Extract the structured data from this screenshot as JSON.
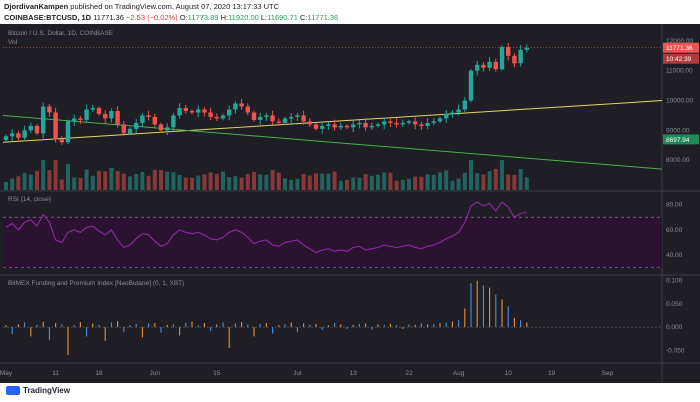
{
  "header": {
    "author": "DjordivanKampen",
    "published_text": "published on TradingView.com, August 07, 2020 13:17:33 UTC",
    "symbol": "COINBASE:BTCUSD, 1D",
    "last": "11771.36",
    "change": "−2.53 (−0.02%)",
    "o_label": "O:",
    "o_value": "11773.89",
    "h_label": "H:",
    "h_value": "11920.00",
    "l_label": "L:",
    "l_value": "11690.71",
    "c_label": "C:",
    "c_value": "11771.36"
  },
  "footer": {
    "brand": "TradingView"
  },
  "colors": {
    "background": "#1e1e24",
    "up": "#26a69a",
    "down": "#ef5350",
    "rsi_line": "#9c27b0",
    "rsi_fill": "#2a1230",
    "funding_blue": "#4a90e2",
    "funding_orange": "#e8913a",
    "yellow_line": "#e6d36a",
    "green_line": "#4caf50"
  },
  "chart_data": [
    {
      "type": "candlestick",
      "title": "Bitcoin / U.S. Dollar, 1D, COINBASE",
      "subtitle": "Vol",
      "x_tick_labels": [
        "May",
        "11",
        "18",
        "Jun",
        "15",
        "Jul",
        "13",
        "22",
        "Aug",
        "10",
        "19",
        "Sep"
      ],
      "y_tick_labels": [
        "12000.00",
        "11000.00",
        "10000.00",
        "9000.00",
        "8000.00"
      ],
      "ylim": [
        7000,
        12500
      ],
      "last_price_label": "11771.36",
      "countdown_label": "10:42:39",
      "support_label": "8697.94",
      "closes": [
        8800,
        8900,
        8750,
        9000,
        9150,
        8900,
        9800,
        9600,
        8700,
        8600,
        9300,
        9400,
        9350,
        9700,
        9750,
        9550,
        9400,
        9650,
        9200,
        8900,
        9050,
        9250,
        9500,
        9450,
        9200,
        9000,
        9100,
        9500,
        9750,
        9650,
        9600,
        9700,
        9600,
        9450,
        9400,
        9500,
        9700,
        9900,
        9800,
        9600,
        9350,
        9450,
        9500,
        9300,
        9250,
        9400,
        9450,
        9500,
        9300,
        9200,
        9050,
        9150,
        9200,
        9100,
        9150,
        9100,
        9200,
        9250,
        9100,
        9150,
        9200,
        9300,
        9250,
        9200,
        9250,
        9300,
        9200,
        9150,
        9250,
        9300,
        9400,
        9550,
        9600,
        9700,
        10000,
        11000,
        11200,
        11100,
        11300,
        11050,
        11800,
        11500,
        11250,
        11700,
        11771.36
      ]
    },
    {
      "type": "line",
      "title": "RSI (14, close)",
      "y_tick_labels": [
        "80.00",
        "60.00",
        "40.00"
      ],
      "ylim": [
        25,
        90
      ],
      "values": [
        62,
        65,
        60,
        66,
        68,
        63,
        72,
        66,
        52,
        50,
        58,
        60,
        58,
        62,
        63,
        59,
        56,
        60,
        52,
        46,
        48,
        53,
        57,
        56,
        51,
        47,
        49,
        56,
        60,
        58,
        57,
        58,
        56,
        53,
        52,
        54,
        58,
        60,
        58,
        54,
        49,
        51,
        52,
        48,
        47,
        50,
        51,
        52,
        48,
        45,
        42,
        44,
        45,
        43,
        44,
        43,
        46,
        47,
        44,
        45,
        46,
        48,
        47,
        46,
        47,
        48,
        46,
        45,
        47,
        48,
        50,
        53,
        55,
        58,
        66,
        79,
        82,
        79,
        81,
        75,
        82,
        78,
        70,
        73,
        74
      ]
    },
    {
      "type": "bar",
      "title": "BitMEX Funding and Premium Index [NeoButane] (0, 1, XBT)",
      "y_tick_labels": [
        "0.100",
        "0.050",
        "0.000",
        "-0.050"
      ],
      "ylim": [
        -0.075,
        0.11
      ],
      "values": [
        0.004,
        -0.015,
        0.006,
        0.01,
        -0.02,
        0.005,
        0.012,
        -0.028,
        0.009,
        0.006,
        -0.06,
        0.004,
        0.011,
        -0.02,
        0.008,
        0.005,
        -0.03,
        0.01,
        0.013,
        -0.01,
        0.004,
        0.007,
        -0.022,
        0.008,
        0.009,
        -0.012,
        0.005,
        0.006,
        -0.018,
        0.01,
        0.012,
        0.004,
        0.009,
        -0.008,
        0.006,
        0.01,
        -0.045,
        0.008,
        0.011,
        0.005,
        -0.02,
        0.007,
        0.009,
        -0.014,
        0.004,
        0.006,
        0.01,
        -0.01,
        0.008,
        0.005,
        0.007,
        -0.006,
        0.004,
        0.009,
        0.006,
        -0.004,
        0.005,
        0.007,
        0.008,
        -0.005,
        0.006,
        0.005,
        0.007,
        0.004,
        -0.004,
        0.006,
        0.005,
        0.008,
        0.006,
        0.007,
        0.009,
        0.01,
        0.012,
        0.015,
        0.04,
        0.095,
        0.1,
        0.09,
        0.085,
        0.07,
        0.06,
        0.045,
        0.02,
        0.015,
        0.01
      ]
    }
  ]
}
